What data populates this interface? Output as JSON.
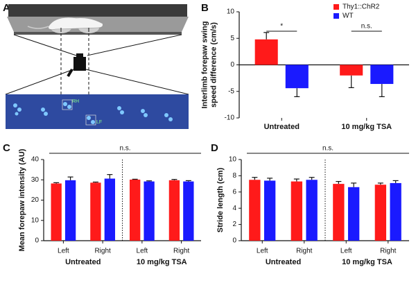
{
  "panel_a": {
    "panel": "A",
    "paw_labels": [
      "RH",
      "LF"
    ]
  },
  "chart_data": [
    {
      "type": "bar",
      "panel": "B",
      "ylabel": [
        "Interlimb forepaw swing",
        "speed difference  (cm/s)"
      ],
      "categories": [
        "Untreated",
        "10 mg/kg TSA"
      ],
      "series": [
        {
          "name": "Thy1::ChR2",
          "color": "#ff1a1a",
          "values": [
            4.8,
            -2.0
          ],
          "errors": [
            1.3,
            2.3
          ]
        },
        {
          "name": "WT",
          "color": "#1a1aff",
          "values": [
            -4.4,
            -3.6
          ],
          "errors": [
            1.6,
            2.4
          ]
        }
      ],
      "ylim": [
        -10,
        10
      ],
      "yticks": [
        -10,
        -5,
        0,
        5,
        10
      ],
      "annotations": [
        "*",
        "n.s."
      ]
    },
    {
      "type": "bar",
      "panel": "C",
      "ylabel": [
        "Mean forepaw intensity (AU)"
      ],
      "categories": [
        "Left",
        "Right",
        "Left",
        "Right"
      ],
      "group_labels": [
        "Untreated",
        "10 mg/kg TSA"
      ],
      "series": [
        {
          "name": "Thy1::ChR2",
          "color": "#ff1a1a",
          "values": [
            28.2,
            28.6,
            30.1,
            29.8
          ],
          "errors": [
            0.4,
            0.3,
            0.2,
            0.4
          ]
        },
        {
          "name": "WT",
          "color": "#1a1aff",
          "values": [
            29.8,
            30.6,
            29.2,
            29.2
          ],
          "errors": [
            1.6,
            2.0,
            0.3,
            0.4
          ]
        }
      ],
      "ylim": [
        0,
        40
      ],
      "yticks": [
        0,
        10,
        20,
        30,
        40
      ],
      "annotations": [
        "n.s."
      ]
    },
    {
      "type": "bar",
      "panel": "D",
      "ylabel": [
        "Stride length (cm)"
      ],
      "categories": [
        "Left",
        "Right",
        "Left",
        "Right"
      ],
      "group_labels": [
        "Untreated",
        "10 mg/kg TSA"
      ],
      "series": [
        {
          "name": "Thy1::ChR2",
          "color": "#ff1a1a",
          "values": [
            7.5,
            7.3,
            7.0,
            6.9
          ],
          "errors": [
            0.3,
            0.3,
            0.3,
            0.2
          ]
        },
        {
          "name": "WT",
          "color": "#1a1aff",
          "values": [
            7.4,
            7.5,
            6.6,
            7.1
          ],
          "errors": [
            0.3,
            0.3,
            0.5,
            0.3
          ]
        }
      ],
      "ylim": [
        0,
        10
      ],
      "yticks": [
        0,
        2,
        4,
        6,
        8,
        10
      ],
      "annotations": [
        "n.s."
      ]
    }
  ]
}
